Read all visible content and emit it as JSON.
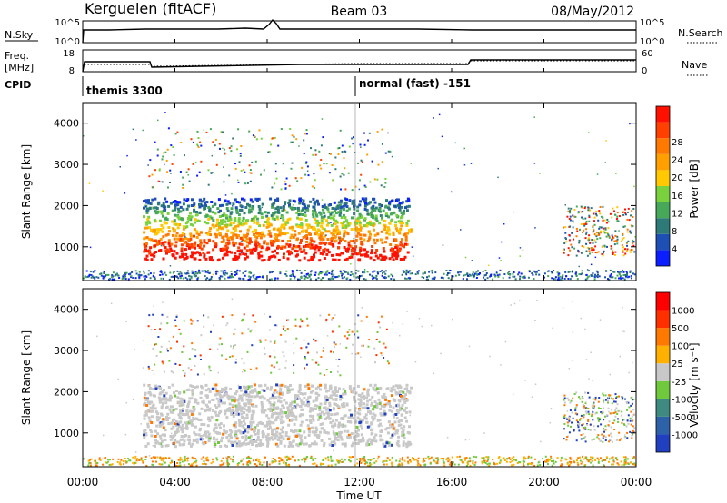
{
  "header": {
    "station": "Kerguelen (fitACF)",
    "beam": "Beam 03",
    "date": "08/May/2012"
  },
  "panels": {
    "nsky": {
      "left_label": "N.Sky",
      "right_label": "N.Search",
      "ticks_left": [
        "10^5",
        "10^0"
      ],
      "ticks_right": [
        "10^5",
        "10^0"
      ]
    },
    "freq": {
      "left_label_1": "Freq.",
      "left_label_2": "[MHz]",
      "right_label": "Nave",
      "ticks_left": [
        "18",
        "8"
      ],
      "ticks_right": [
        "60",
        "0"
      ]
    },
    "cpid": {
      "label": "CPID",
      "segments": [
        {
          "text": "themis 3300",
          "start": "00:00"
        },
        {
          "text": "normal (fast) -151",
          "start": "12:00"
        }
      ]
    }
  },
  "chart_data": [
    {
      "type": "heatmap",
      "name": "power",
      "ylabel": "Slant Range [km]",
      "yticks": [
        "1000",
        "2000",
        "3000",
        "4000"
      ],
      "ylim": [
        180,
        4500
      ],
      "colorbar_label": "Power [dB]",
      "colorbar_ticks": [
        "4",
        "8",
        "12",
        "16",
        "20",
        "24",
        "28"
      ],
      "colorbar_colors": [
        "#0a1eff",
        "#1e4fb4",
        "#2e7a78",
        "#46a858",
        "#7ad13e",
        "#ffc800",
        "#ffa000",
        "#ff7800",
        "#ff4000",
        "#ff1000"
      ]
    },
    {
      "type": "heatmap",
      "name": "velocity",
      "ylabel": "Slant Range [km]",
      "yticks": [
        "1000",
        "2000",
        "3000",
        "4000"
      ],
      "ylim": [
        180,
        4500
      ],
      "colorbar_label": "Velocity [m s⁻¹]",
      "colorbar_ticks": [
        "1000",
        "500",
        "100",
        "25",
        "-25",
        "-100",
        "-500",
        "-1000"
      ],
      "colorbar_colors": [
        "#2040c0",
        "#2e62a8",
        "#3e8a80",
        "#70c83c",
        "#c8c8c8",
        "#ffb000",
        "#ff7800",
        "#ff3000",
        "#ff0000"
      ]
    }
  ],
  "xaxis": {
    "label": "Time UT",
    "ticks": [
      "00:00",
      "04:00",
      "08:00",
      "12:00",
      "16:00",
      "20:00",
      "00:00"
    ]
  }
}
